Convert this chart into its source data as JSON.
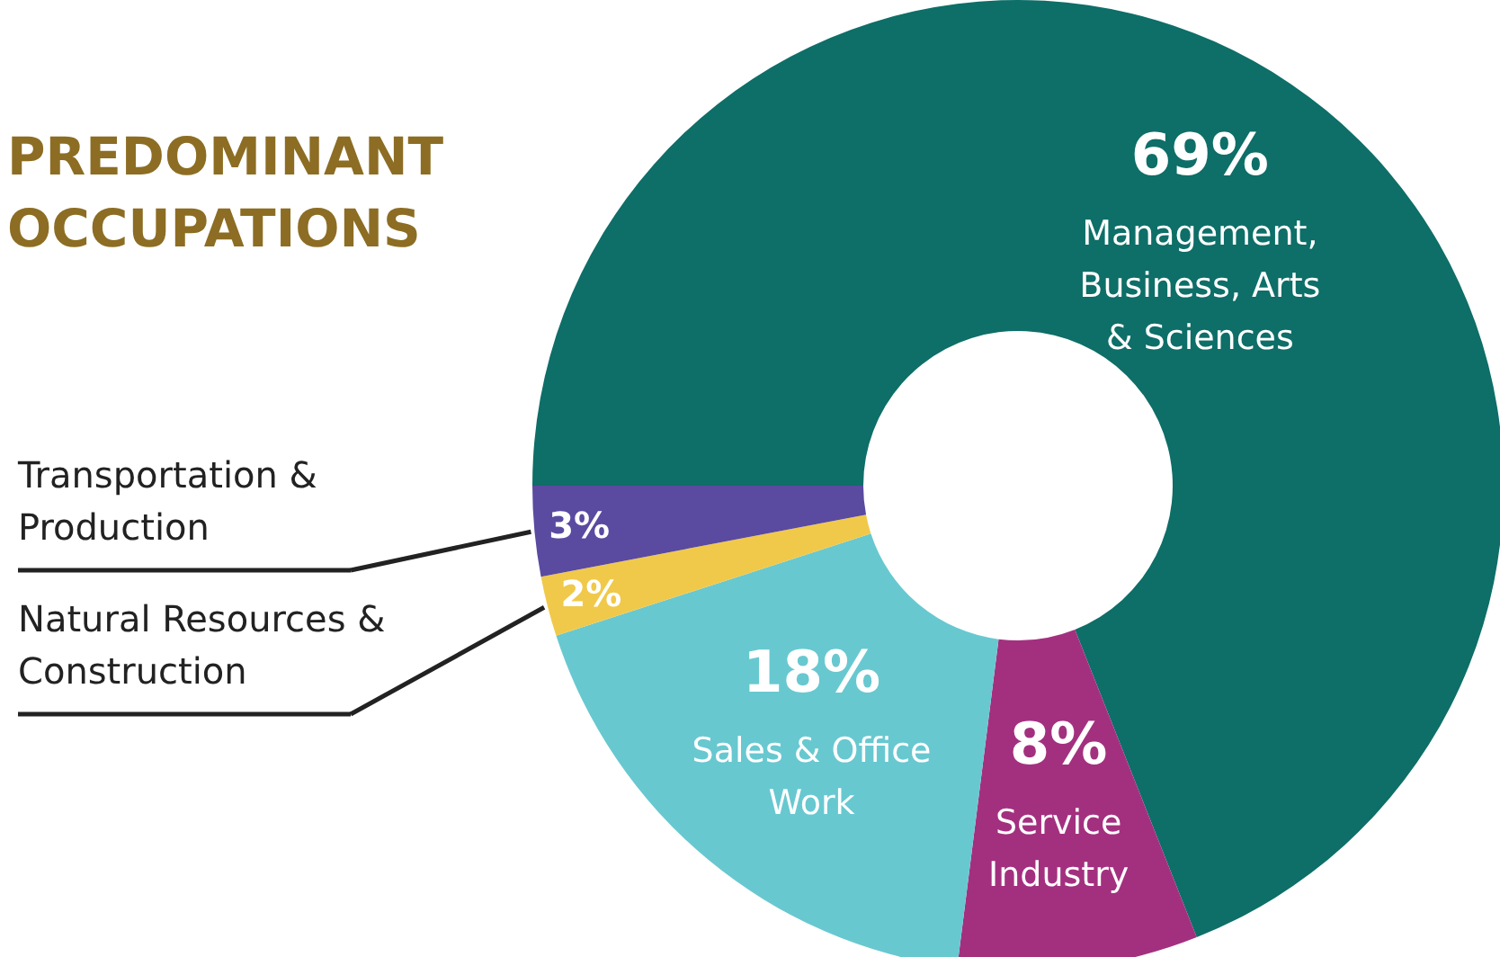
{
  "chart_data": {
    "type": "donut",
    "title": "PREDOMINANT OCCUPATIONS",
    "categories": [
      "Management, Business, Arts & Sciences",
      "Service Industry",
      "Sales & Office Work",
      "Natural Resources & Construction",
      "Transportation & Production"
    ],
    "values": [
      69,
      8,
      18,
      2,
      3
    ],
    "colors": [
      "#0e6e68",
      "#a3307f",
      "#68c8d0",
      "#f0c94a",
      "#5a4aa0"
    ],
    "value_labels": [
      "69%",
      "8%",
      "18%",
      "2%",
      "3%"
    ]
  }
}
